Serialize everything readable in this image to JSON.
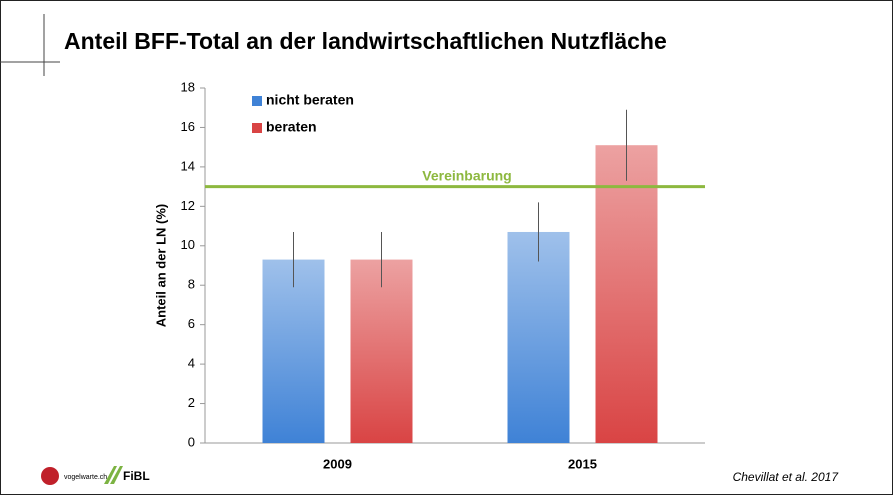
{
  "title": "Anteil BFF-Total an der landwirtschaftlichen Nutzfläche",
  "source": "Chevillat et al. 2017",
  "logos": [
    "vogelwarte.ch",
    "FiBL"
  ],
  "chart_data": {
    "type": "bar",
    "ylabel": "Anteil an der LN (%)",
    "categories": [
      "2009",
      "2015"
    ],
    "series": [
      {
        "name": "nicht beraten",
        "color": "#3f82d6",
        "values": [
          9.3,
          10.7
        ],
        "errors": [
          1.4,
          1.5
        ]
      },
      {
        "name": "beraten",
        "color": "#d94444",
        "values": [
          9.3,
          15.1
        ],
        "errors": [
          1.4,
          1.8
        ]
      }
    ],
    "reference_line": {
      "value": 13,
      "label": "Vereinbarung",
      "color": "#8db83f"
    },
    "ylim": [
      0,
      18
    ],
    "yticks": [
      0,
      2,
      4,
      6,
      8,
      10,
      12,
      14,
      16,
      18
    ],
    "legend": "top-left"
  }
}
